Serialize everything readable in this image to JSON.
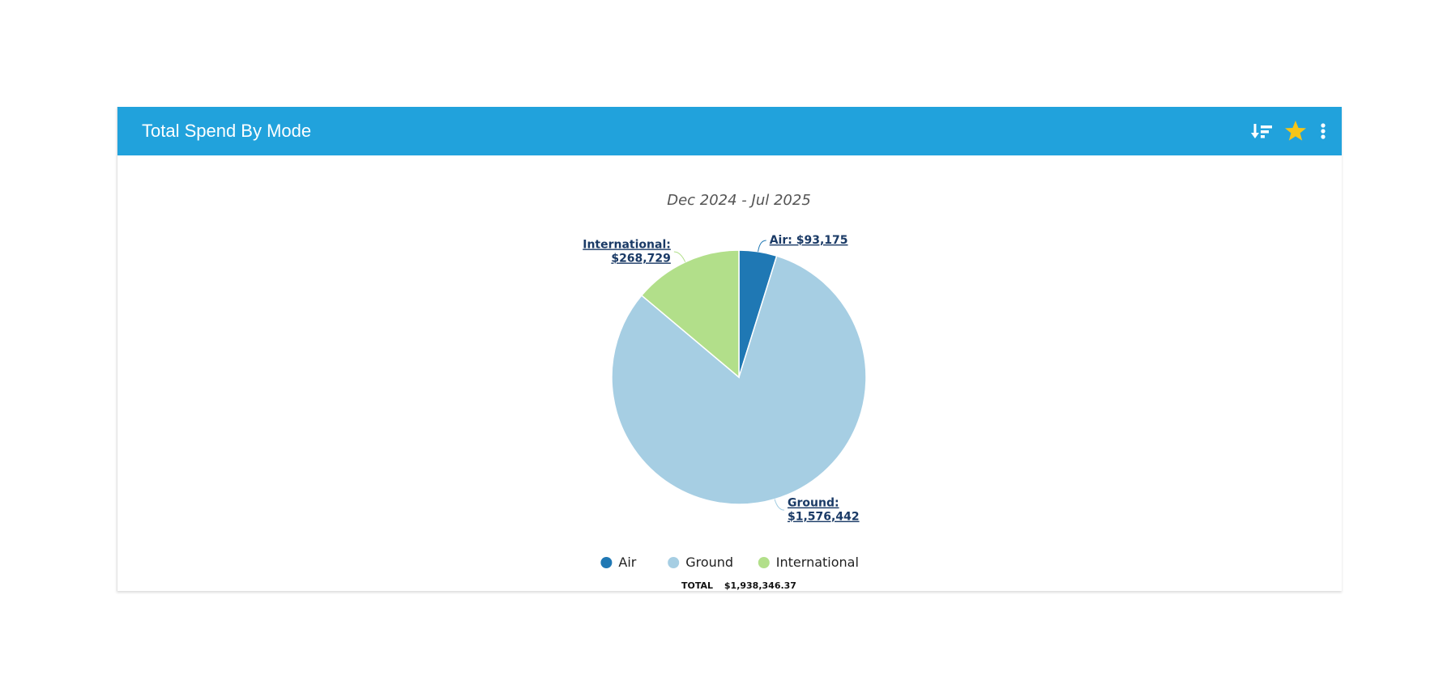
{
  "widget": {
    "title": "Total Spend By Mode",
    "header_color": "#21a2dc",
    "icons": [
      "sort-icon",
      "star-icon",
      "more-vertical-icon"
    ],
    "star_color": "#f5c518"
  },
  "chart_data": {
    "type": "pie",
    "subtitle": "Dec 2024 - Jul 2025",
    "categories": [
      "Air",
      "Ground",
      "International"
    ],
    "values": [
      93175,
      1576442,
      268729
    ],
    "data_labels": [
      "Air: $93,175",
      "Ground:\n$1,576,442",
      "International:\n$268,729"
    ],
    "colors": [
      "#1f78b4",
      "#a6cee3",
      "#b2df8a"
    ],
    "legend": [
      "Air",
      "Ground",
      "International"
    ],
    "legend_position": "bottom",
    "total_label": "TOTAL",
    "total_value": "$1,938,346.37"
  }
}
